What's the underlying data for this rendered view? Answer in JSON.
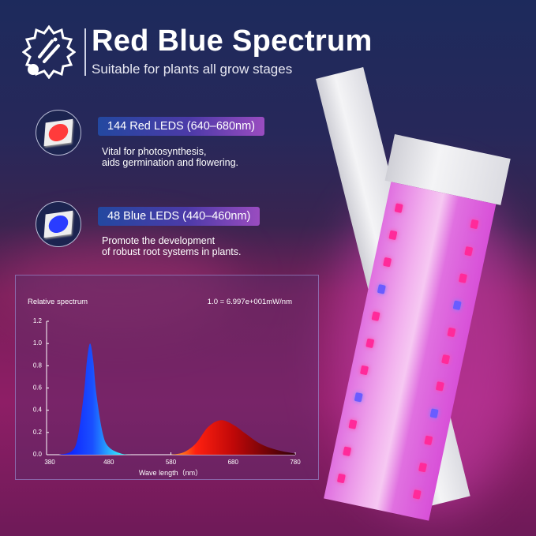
{
  "header": {
    "title": "Red Blue Spectrum",
    "subtitle": "Suitable for plants all grow stages",
    "logo_icon": "sun-bulb-icon"
  },
  "features": [
    {
      "label": "144 Red LEDS (640–680nm)",
      "description_line1": "Vital for photosynthesis,",
      "description_line2": "aids germination and flowering.",
      "led_color": "#ff3b3b"
    },
    {
      "label": "48 Blue LEDS (440–460nm)",
      "description_line1": "Promote the development",
      "description_line2": "of robust root systems in plants.",
      "led_color": "#2a3cff"
    }
  ],
  "chart_data": {
    "type": "area",
    "title": "Relative spectrum",
    "annotation": "1.0 = 6.997e+001mW/nm",
    "xlabel": "Wave length（nm）",
    "ylabel": "",
    "xlim": [
      380,
      780
    ],
    "ylim": [
      0,
      1.2
    ],
    "x_ticks": [
      "380",
      "480",
      "580",
      "680",
      "780"
    ],
    "y_ticks": [
      "0.0",
      "0.2",
      "0.4",
      "0.6",
      "0.8",
      "1.0",
      "1.2"
    ],
    "grid": false,
    "series": [
      {
        "color": "#1a2cff",
        "x": [
          400,
          420,
          430,
          440,
          445,
          450,
          455,
          460,
          470,
          480,
          500,
          520
        ],
        "y": [
          0,
          0.03,
          0.15,
          0.55,
          0.85,
          1.0,
          0.85,
          0.55,
          0.2,
          0.07,
          0.01,
          0
        ]
      },
      {
        "color": "#e01010",
        "x": [
          580,
          600,
          620,
          640,
          660,
          680,
          700,
          720,
          740,
          760,
          780
        ],
        "y": [
          0,
          0.02,
          0.1,
          0.25,
          0.31,
          0.27,
          0.19,
          0.11,
          0.06,
          0.03,
          0.01
        ]
      }
    ]
  }
}
